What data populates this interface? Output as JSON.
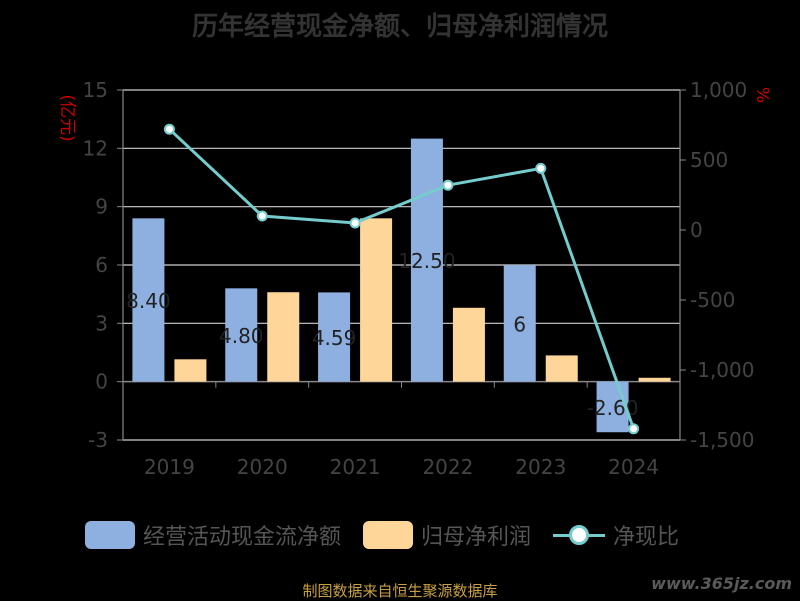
{
  "title": "历年经营现金净额、归母净利润情况",
  "left_axis_unit": "(亿元)",
  "right_axis_unit": "%",
  "legend": {
    "cash_flow": "经营活动现金流净额",
    "net_profit": "归母净利润",
    "ratio": "净现比"
  },
  "source": "制图数据来自恒生聚源数据库",
  "watermark": "www.365jz.com",
  "colors": {
    "cash_flow": "#8EB0E0",
    "net_profit": "#FFD699",
    "ratio": "#76CCCC"
  },
  "chart_data": {
    "type": "bar",
    "categories": [
      "2019",
      "2020",
      "2021",
      "2022",
      "2023",
      "2024"
    ],
    "series": [
      {
        "name": "经营活动现金流净额",
        "type": "bar",
        "axis": "left",
        "values": [
          8.4,
          4.8,
          4.59,
          12.5,
          6,
          -2.6
        ],
        "data_labels": [
          "8.40",
          "4.80",
          "4.59",
          "12.50",
          "6",
          "-2.60"
        ]
      },
      {
        "name": "归母净利润",
        "type": "bar",
        "axis": "left",
        "values": [
          1.15,
          4.6,
          8.4,
          3.8,
          1.35,
          0.2
        ]
      },
      {
        "name": "净现比",
        "type": "line",
        "axis": "right",
        "values": [
          720,
          100,
          50,
          320,
          440,
          -1420
        ]
      }
    ],
    "y_left": {
      "ticks": [
        15,
        12,
        9,
        6,
        3,
        0,
        -3
      ],
      "ylim": [
        -3,
        15
      ]
    },
    "y_right": {
      "ticks": [
        "1,000",
        "500",
        "0",
        "-500",
        "-1,000",
        "-1,500"
      ],
      "ylim": [
        -1500,
        1000
      ]
    },
    "grid": true,
    "legend_position": "bottom"
  }
}
